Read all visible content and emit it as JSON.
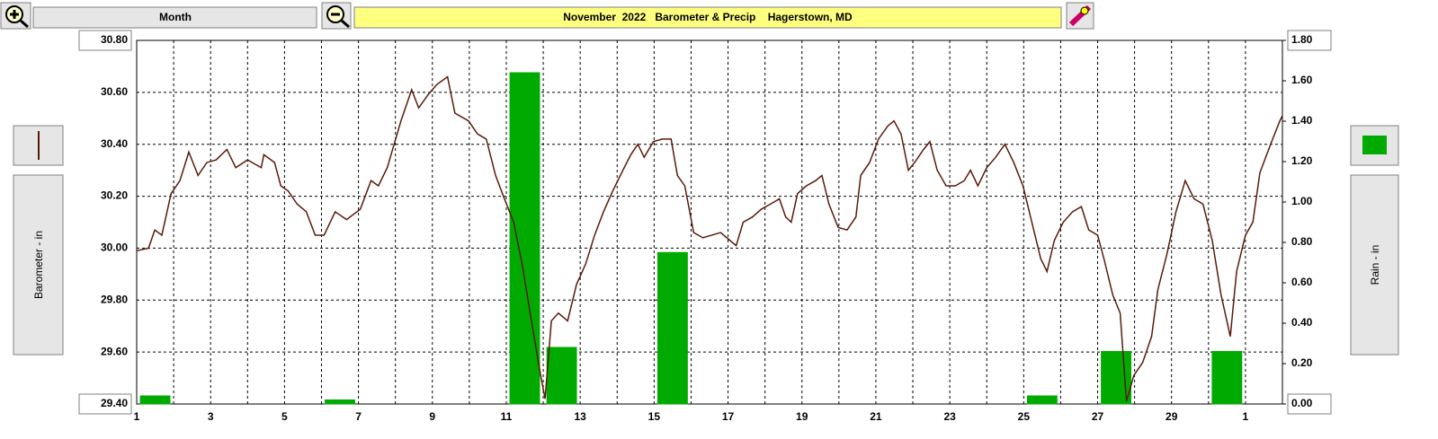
{
  "toolbar": {
    "period": "Month"
  },
  "chart_data": {
    "type": "combo",
    "title": "November  2022   Barometer & Precip    Hagerstown, MD",
    "ylabel": "Barometer - in",
    "y2label": "Rain - in",
    "xlim": [
      1,
      32
    ],
    "xticks": [
      1,
      3,
      5,
      7,
      9,
      11,
      13,
      15,
      17,
      19,
      21,
      23,
      25,
      27,
      29,
      {
        "value": 31,
        "label": "1"
      }
    ],
    "x_minor_grid": true,
    "ylim": [
      29.4,
      30.8
    ],
    "yticks": [
      {
        "value": 29.4,
        "label": "29.40"
      },
      {
        "value": 29.6,
        "label": "29.60"
      },
      {
        "value": 29.8,
        "label": "29.80"
      },
      {
        "value": 30.0,
        "label": "30.00"
      },
      {
        "value": 30.2,
        "label": "30.20"
      },
      {
        "value": 30.4,
        "label": "30.40"
      },
      {
        "value": 30.6,
        "label": "30.60"
      },
      {
        "value": 30.8,
        "label": "30.80"
      }
    ],
    "y2lim": [
      0,
      1.8
    ],
    "y2ticks": [
      {
        "value": 0,
        "label": "0.00"
      },
      {
        "value": 0.2,
        "label": "0.20"
      },
      {
        "value": 0.4,
        "label": "0.40"
      },
      {
        "value": 0.6,
        "label": "0.60"
      },
      {
        "value": 0.8,
        "label": "0.80"
      },
      {
        "value": 1.0,
        "label": "1.00"
      },
      {
        "value": 1.2,
        "label": "1.20"
      },
      {
        "value": 1.4,
        "label": "1.40"
      },
      {
        "value": 1.6,
        "label": "1.60"
      },
      {
        "value": 1.8,
        "label": "1.80"
      }
    ],
    "grid": true,
    "series": [
      {
        "type": "bar",
        "axis": "y2",
        "color": "#00aa00",
        "x": [
          1,
          2,
          3,
          4,
          5,
          6,
          7,
          8,
          9,
          10,
          11,
          12,
          13,
          14,
          15,
          16,
          17,
          18,
          19,
          20,
          21,
          22,
          23,
          24,
          25,
          26,
          27,
          28,
          29,
          30,
          31
        ],
        "values": [
          0.04,
          0,
          0,
          0,
          0,
          0.02,
          0,
          0,
          0,
          0,
          1.64,
          0.28,
          0,
          0,
          0.75,
          0,
          0,
          0,
          0,
          0,
          0,
          0,
          0,
          0,
          0.04,
          0,
          0.26,
          0,
          0,
          0.26,
          0
        ]
      },
      {
        "type": "line",
        "axis": "y",
        "color": "#5a1a0a",
        "x": [
          1.0,
          1.32,
          1.49,
          1.68,
          1.93,
          2.17,
          2.41,
          2.66,
          2.9,
          3.15,
          3.44,
          3.68,
          4.0,
          4.37,
          4.44,
          4.73,
          4.9,
          5.1,
          5.34,
          5.59,
          5.83,
          6.07,
          6.37,
          6.68,
          7.05,
          7.34,
          7.54,
          7.78,
          8.15,
          8.44,
          8.63,
          8.88,
          9.12,
          9.41,
          9.61,
          9.98,
          10.22,
          10.46,
          10.71,
          10.95,
          11.2,
          11.44,
          11.68,
          11.93,
          12.05,
          12.22,
          12.41,
          12.66,
          12.9,
          13.15,
          13.39,
          13.63,
          13.88,
          14.12,
          14.37,
          14.56,
          14.73,
          14.98,
          15.22,
          15.46,
          15.63,
          15.83,
          16.07,
          16.32,
          16.56,
          16.8,
          17.05,
          17.22,
          17.41,
          17.66,
          17.9,
          18.15,
          18.39,
          18.56,
          18.71,
          18.88,
          19.12,
          19.37,
          19.54,
          19.73,
          19.98,
          20.22,
          20.46,
          20.59,
          20.83,
          21.07,
          21.32,
          21.49,
          21.68,
          21.88,
          22.05,
          22.29,
          22.46,
          22.66,
          22.9,
          23.15,
          23.39,
          23.56,
          23.76,
          24.0,
          24.24,
          24.49,
          24.73,
          24.98,
          25.22,
          25.46,
          25.63,
          25.83,
          26.07,
          26.32,
          26.56,
          26.76,
          27.0,
          27.17,
          27.41,
          27.61,
          27.78,
          27.98,
          28.22,
          28.46,
          28.63,
          28.88,
          29.12,
          29.37,
          29.61,
          29.85,
          30.1,
          30.34,
          30.59,
          30.76,
          31.0,
          31.2,
          31.39,
          31.68,
          31.93,
          32.0
        ],
        "values": [
          29.99,
          30.0,
          30.07,
          30.05,
          30.21,
          30.26,
          30.37,
          30.28,
          30.33,
          30.34,
          30.38,
          30.31,
          30.34,
          30.31,
          30.36,
          30.33,
          30.24,
          30.22,
          30.17,
          30.14,
          30.05,
          30.05,
          30.14,
          30.11,
          30.15,
          30.26,
          30.24,
          30.31,
          30.49,
          30.61,
          30.54,
          30.59,
          30.63,
          30.66,
          30.52,
          30.49,
          30.44,
          30.42,
          30.28,
          30.19,
          30.1,
          29.93,
          29.72,
          29.51,
          29.42,
          29.72,
          29.75,
          29.72,
          29.86,
          29.94,
          30.05,
          30.14,
          30.22,
          30.29,
          30.36,
          30.4,
          30.35,
          30.41,
          30.42,
          30.42,
          30.28,
          30.24,
          30.06,
          30.04,
          30.05,
          30.06,
          30.03,
          30.01,
          30.1,
          30.12,
          30.15,
          30.17,
          30.19,
          30.12,
          30.1,
          30.21,
          30.24,
          30.26,
          30.28,
          30.17,
          30.08,
          30.07,
          30.12,
          30.28,
          30.33,
          30.42,
          30.47,
          30.49,
          30.44,
          30.3,
          30.33,
          30.38,
          30.41,
          30.3,
          30.24,
          30.24,
          30.26,
          30.3,
          30.24,
          30.31,
          30.35,
          30.4,
          30.33,
          30.24,
          30.1,
          29.96,
          29.91,
          30.03,
          30.1,
          30.14,
          30.16,
          30.07,
          30.05,
          29.96,
          29.82,
          29.75,
          29.41,
          29.51,
          29.56,
          29.66,
          29.84,
          29.98,
          30.14,
          30.26,
          30.19,
          30.17,
          30.03,
          29.82,
          29.66,
          29.91,
          30.05,
          30.1,
          30.29,
          30.4,
          30.49,
          30.51
        ]
      }
    ]
  }
}
